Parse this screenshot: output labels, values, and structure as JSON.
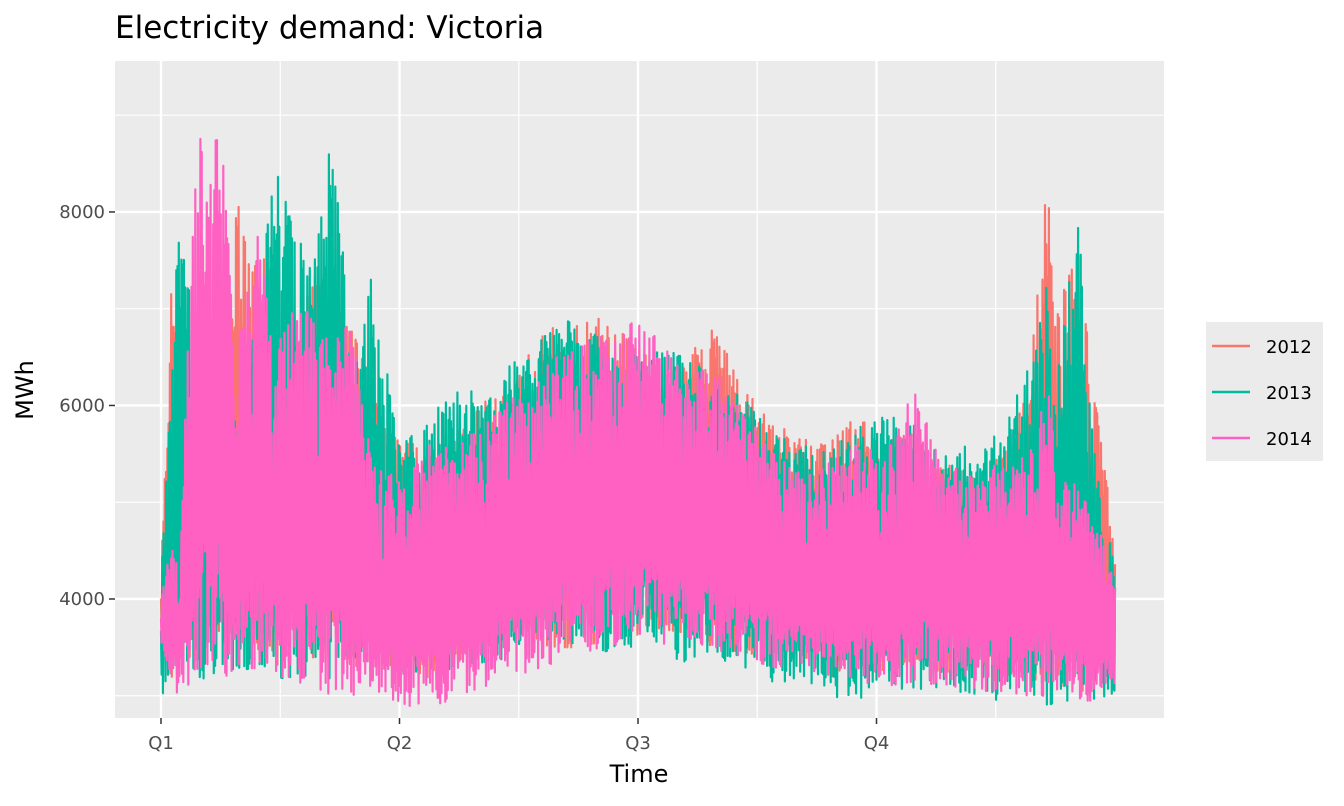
{
  "chart_data": {
    "type": "line",
    "title": "Electricity demand: Victoria",
    "xlabel": "Time",
    "ylabel": "MWh",
    "x_tick_labels": [
      "Q1",
      "Q2",
      "Q3",
      "Q4"
    ],
    "x_range": [
      0,
      1
    ],
    "ylim": [
      2770,
      9560
    ],
    "y_ticks": [
      4000,
      6000,
      8000
    ],
    "grid": true,
    "legend_position": "right",
    "series": [
      {
        "name": "2012",
        "color": "#F8766D",
        "x": [
          0.0,
          0.01,
          0.02,
          0.03,
          0.04,
          0.05,
          0.06,
          0.08,
          0.1,
          0.12,
          0.14,
          0.16,
          0.18,
          0.2,
          0.22,
          0.25,
          0.28,
          0.31,
          0.34,
          0.37,
          0.4,
          0.43,
          0.46,
          0.49,
          0.52,
          0.55,
          0.58,
          0.61,
          0.64,
          0.67,
          0.7,
          0.73,
          0.76,
          0.79,
          0.82,
          0.85,
          0.88,
          0.91,
          0.93,
          0.94,
          0.96,
          0.98,
          1.0
        ],
        "upper": [
          4400,
          7350,
          6100,
          5600,
          6800,
          7200,
          6400,
          8080,
          7650,
          7300,
          6500,
          7450,
          7050,
          6800,
          6200,
          5700,
          5500,
          5800,
          6200,
          6300,
          6800,
          6800,
          6900,
          6700,
          6400,
          6500,
          6800,
          6200,
          5800,
          5700,
          5600,
          5900,
          5600,
          5800,
          5400,
          5300,
          5500,
          6200,
          8450,
          7000,
          7760,
          6050,
          4550
        ],
        "lower": [
          3550,
          3150,
          3500,
          3400,
          3300,
          3600,
          3500,
          3300,
          3350,
          3300,
          3500,
          3250,
          3300,
          3250,
          3200,
          3150,
          3100,
          3300,
          3400,
          3400,
          3500,
          3500,
          3550,
          3600,
          3700,
          3650,
          3500,
          3450,
          3400,
          3300,
          3200,
          3250,
          3250,
          3300,
          3250,
          3200,
          3150,
          3200,
          3100,
          3100,
          3050,
          3000,
          3700
        ]
      },
      {
        "name": "2013",
        "color": "#00BA9E",
        "x": [
          0.0,
          0.01,
          0.02,
          0.03,
          0.04,
          0.05,
          0.06,
          0.08,
          0.1,
          0.12,
          0.14,
          0.16,
          0.18,
          0.2,
          0.22,
          0.25,
          0.28,
          0.31,
          0.34,
          0.37,
          0.4,
          0.43,
          0.46,
          0.49,
          0.52,
          0.55,
          0.58,
          0.61,
          0.64,
          0.67,
          0.7,
          0.73,
          0.76,
          0.79,
          0.82,
          0.85,
          0.88,
          0.91,
          0.93,
          0.94,
          0.96,
          0.98,
          1.0
        ],
        "upper": [
          4200,
          6100,
          8320,
          7300,
          6200,
          5800,
          6350,
          6000,
          7000,
          8450,
          7800,
          7650,
          8900,
          6500,
          7400,
          5600,
          5800,
          6300,
          6000,
          6500,
          6700,
          6900,
          6700,
          6500,
          6600,
          6500,
          6300,
          6100,
          5700,
          5600,
          5500,
          5800,
          5900,
          5800,
          5500,
          5600,
          5700,
          6400,
          7350,
          6300,
          8160,
          5350,
          4300
        ],
        "lower": [
          3000,
          3100,
          3200,
          3300,
          3200,
          3100,
          3350,
          3250,
          3300,
          3200,
          3150,
          3250,
          3150,
          3400,
          3300,
          3250,
          3200,
          3300,
          3350,
          3400,
          3450,
          3500,
          3450,
          3500,
          3450,
          3350,
          3400,
          3300,
          3150,
          3050,
          3000,
          2950,
          3100,
          3050,
          3100,
          3000,
          2950,
          3050,
          2900,
          2950,
          2950,
          2900,
          3000
        ]
      },
      {
        "name": "2014",
        "color": "#FF61C3",
        "x": [
          0.0,
          0.01,
          0.02,
          0.03,
          0.04,
          0.05,
          0.06,
          0.08,
          0.1,
          0.12,
          0.14,
          0.16,
          0.18,
          0.2,
          0.22,
          0.25,
          0.28,
          0.31,
          0.34,
          0.37,
          0.4,
          0.43,
          0.46,
          0.49,
          0.52,
          0.55,
          0.58,
          0.61,
          0.64,
          0.67,
          0.7,
          0.73,
          0.76,
          0.79,
          0.82,
          0.85,
          0.88,
          0.91,
          0.93,
          0.94,
          0.96,
          0.98,
          1.0
        ],
        "upper": [
          4100,
          4500,
          4700,
          7050,
          9350,
          8100,
          9220,
          6600,
          7900,
          6500,
          7200,
          6850,
          6700,
          6850,
          5500,
          5200,
          5600,
          5600,
          5800,
          6100,
          6400,
          6600,
          6700,
          6900,
          6700,
          6300,
          6400,
          5900,
          5600,
          5300,
          5400,
          5600,
          5500,
          6200,
          5400,
          5300,
          5400,
          5500,
          6200,
          5200,
          5200,
          4950,
          4200
        ],
        "lower": [
          3400,
          3200,
          2950,
          3050,
          3300,
          3150,
          3250,
          3150,
          3300,
          3100,
          3150,
          3100,
          3000,
          3000,
          3100,
          2900,
          2850,
          3000,
          3100,
          3200,
          3300,
          3400,
          3500,
          3550,
          3550,
          3500,
          3450,
          3400,
          3300,
          3250,
          3200,
          3150,
          3100,
          3150,
          3100,
          3050,
          3050,
          3000,
          3000,
          3000,
          2950,
          2950,
          3100
        ]
      }
    ]
  }
}
